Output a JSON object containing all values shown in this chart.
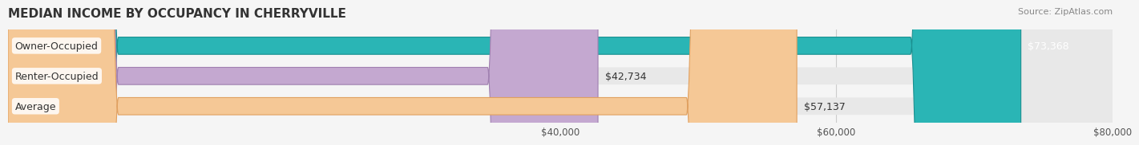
{
  "title": "MEDIAN INCOME BY OCCUPANCY IN CHERRYVILLE",
  "source": "Source: ZipAtlas.com",
  "categories": [
    "Owner-Occupied",
    "Renter-Occupied",
    "Average"
  ],
  "values": [
    73368,
    42734,
    57137
  ],
  "bar_colors": [
    "#2ab5b5",
    "#c4a8d0",
    "#f5c896"
  ],
  "bar_edge_colors": [
    "#1a9090",
    "#a080b0",
    "#e0a060"
  ],
  "label_colors": [
    "#ffffff",
    "#555555",
    "#555555"
  ],
  "value_labels": [
    "$73,368",
    "$42,734",
    "$57,137"
  ],
  "xlim": [
    0,
    80000
  ],
  "xticks": [
    40000,
    60000,
    80000
  ],
  "xtick_labels": [
    "$40,000",
    "$60,000",
    "$80,000"
  ],
  "background_color": "#f5f5f5",
  "bar_bg_color": "#e8e8e8",
  "title_fontsize": 11,
  "source_fontsize": 8,
  "label_fontsize": 9,
  "value_fontsize": 9,
  "bar_height": 0.55
}
